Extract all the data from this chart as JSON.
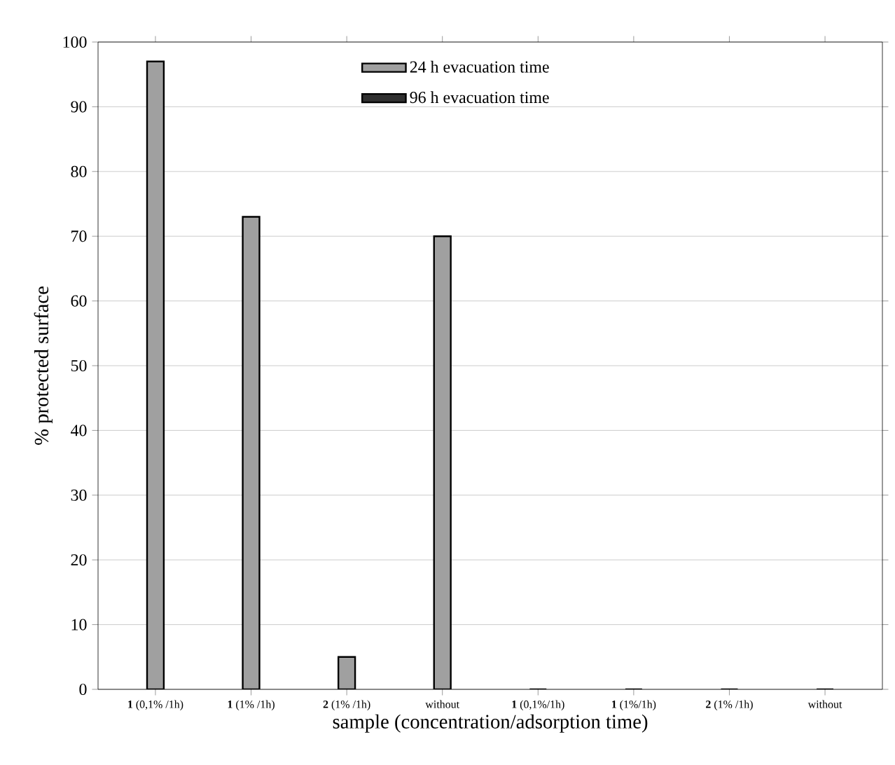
{
  "chart_data": {
    "type": "bar",
    "xlabel": "sample (concentration/adsorption time)",
    "ylabel": "% protected surface",
    "categories": [
      "**1** (0,1% /1h)",
      "**1** (1% /1h)",
      "**2** (1% /1h)",
      "without",
      "**1** (0,1%/1h)",
      "**1** (1%/1h)",
      "**2** (1% /1h)",
      "without"
    ],
    "series": [
      {
        "name": "24 h evacuation time",
        "color": "#a0a0a0",
        "values": [
          97,
          73,
          5,
          70,
          null,
          null,
          null,
          null
        ]
      },
      {
        "name": "96 h evacuation time",
        "color": "#303030",
        "values": [
          null,
          null,
          null,
          null,
          0,
          0,
          0,
          0
        ]
      }
    ],
    "ylim": [
      0,
      100
    ],
    "yticks": [
      0,
      10,
      20,
      30,
      40,
      50,
      60,
      70,
      80,
      90,
      100
    ],
    "grid": "y",
    "legend": "top"
  }
}
